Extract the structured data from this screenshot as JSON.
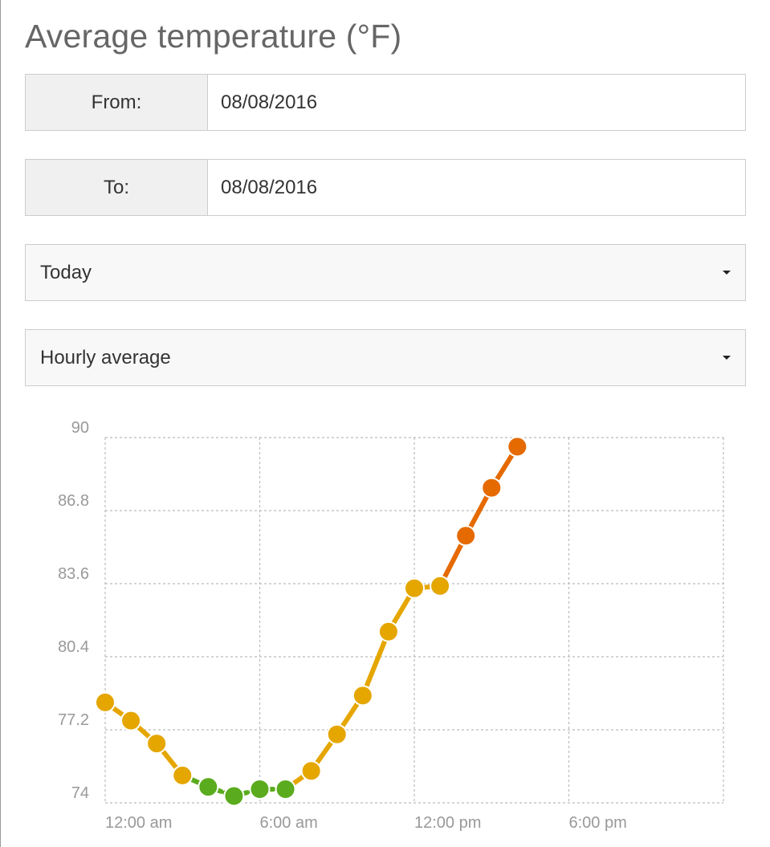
{
  "title": "Average temperature (°F)",
  "from": {
    "label": "From:",
    "value": "08/08/2016"
  },
  "to": {
    "label": "To:",
    "value": "08/08/2016"
  },
  "range_select": {
    "selected": "Today"
  },
  "aggregate_select": {
    "selected": "Hourly average"
  },
  "colors": {
    "green": "#5aab1d",
    "yellow": "#e5a600",
    "orange": "#e56a00",
    "grid": "#bbbbbb",
    "axis_text": "#999999"
  },
  "chart_data": {
    "type": "line",
    "title": "",
    "xlabel": "",
    "ylabel": "",
    "ylim": [
      74,
      90
    ],
    "xlim": [
      0,
      24
    ],
    "x_ticks": [
      "12:00 am",
      "6:00 am",
      "12:00 pm",
      "6:00 pm"
    ],
    "y_ticks": [
      "90",
      "86.8",
      "83.6",
      "80.4",
      "77.2",
      "74"
    ],
    "grid": true,
    "legend": "none",
    "series": [
      {
        "x": [
          0,
          1,
          2,
          3,
          4,
          5,
          6,
          7,
          8,
          9,
          10,
          11,
          12,
          13,
          14,
          15,
          16
        ],
        "y": [
          78.4,
          77.6,
          76.6,
          75.2,
          74.7,
          74.3,
          74.6,
          74.6,
          75.4,
          77.0,
          78.7,
          81.5,
          83.4,
          83.5,
          85.7,
          87.8,
          89.6
        ],
        "point_colors": [
          "yellow",
          "yellow",
          "yellow",
          "yellow",
          "green",
          "green",
          "green",
          "green",
          "yellow",
          "yellow",
          "yellow",
          "yellow",
          "yellow",
          "yellow",
          "orange",
          "orange",
          "orange"
        ]
      }
    ]
  }
}
